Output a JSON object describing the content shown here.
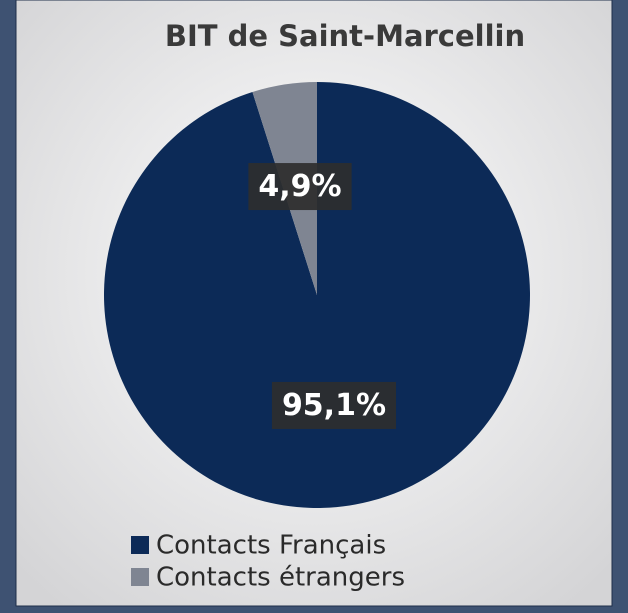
{
  "chart_data": {
    "type": "pie",
    "title": "BIT de Saint-Marcellin",
    "categories": [
      "Contacts Français",
      "Contacts étrangers"
    ],
    "values": [
      95.1,
      4.9
    ],
    "value_labels": [
      "95,1%",
      "4,9%"
    ],
    "colors": [
      "#0c2a57",
      "#7f8592"
    ],
    "legend": "bottom"
  }
}
